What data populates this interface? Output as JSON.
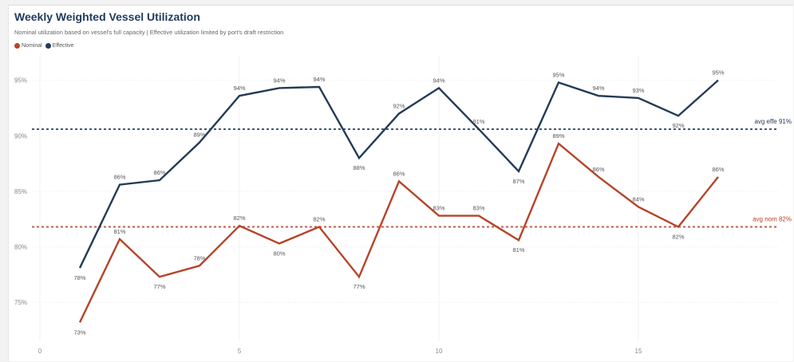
{
  "header": {
    "title": "Weekly Weighted Vessel Utilization",
    "subtitle": "Nominal utilization based on vessel's full capacity | Effective utilization limited by port's draft restriction"
  },
  "legend": {
    "items": [
      {
        "label": "Nominal",
        "color": "#b5442a"
      },
      {
        "label": "Effective",
        "color": "#243b58"
      }
    ]
  },
  "annotations": {
    "avg_effective": "avg effe 91%",
    "avg_nominal": "avg nom 82%"
  },
  "chart_data": {
    "type": "line",
    "title": "Weekly Weighted Vessel Utilization",
    "subtitle": "Nominal utilization based on vessel's full capacity | Effective utilization limited by port's draft restriction",
    "x": [
      1,
      2,
      3,
      4,
      5,
      6,
      7,
      8,
      9,
      10,
      11,
      12,
      13,
      14,
      15,
      16,
      17
    ],
    "x_ticks": [
      0,
      5,
      10,
      15
    ],
    "xlim": [
      0,
      18.5
    ],
    "y_ticks": [
      75,
      80,
      85,
      90,
      95
    ],
    "y_tick_labels": [
      "75%",
      "80%",
      "85%",
      "90%",
      "95%"
    ],
    "ylim": [
      71.5,
      97.2
    ],
    "grid": true,
    "legend_position": "top-left",
    "series": [
      {
        "name": "Effective",
        "color": "#243b58",
        "values": [
          78.1,
          85.6,
          86.0,
          89.4,
          93.6,
          94.3,
          94.4,
          88.0,
          92.0,
          94.3,
          90.6,
          86.8,
          94.8,
          93.6,
          93.4,
          91.8,
          95.0
        ],
        "labels": [
          "78%",
          "86%",
          "86%",
          "89%",
          "94%",
          "94%",
          "94%",
          "88%",
          "92%",
          "94%",
          "91%",
          "87%",
          "95%",
          "94%",
          "93%",
          "92%",
          "95%"
        ]
      },
      {
        "name": "Nominal",
        "color": "#b5442a",
        "values": [
          73.2,
          80.7,
          77.3,
          78.3,
          81.9,
          80.3,
          81.8,
          77.3,
          85.9,
          82.8,
          82.8,
          80.6,
          89.3,
          86.3,
          83.6,
          81.8,
          86.3
        ],
        "labels": [
          "73%",
          "81%",
          "77%",
          "78%",
          "82%",
          "80%",
          "82%",
          "77%",
          "86%",
          "83%",
          "83%",
          "81%",
          "89%",
          "86%",
          "84%",
          "82%",
          "86%"
        ]
      }
    ],
    "reference_lines": [
      {
        "series": "Effective",
        "value": 90.6,
        "label": "avg effe 91%"
      },
      {
        "series": "Nominal",
        "value": 81.8,
        "label": "avg nom 82%"
      }
    ]
  }
}
